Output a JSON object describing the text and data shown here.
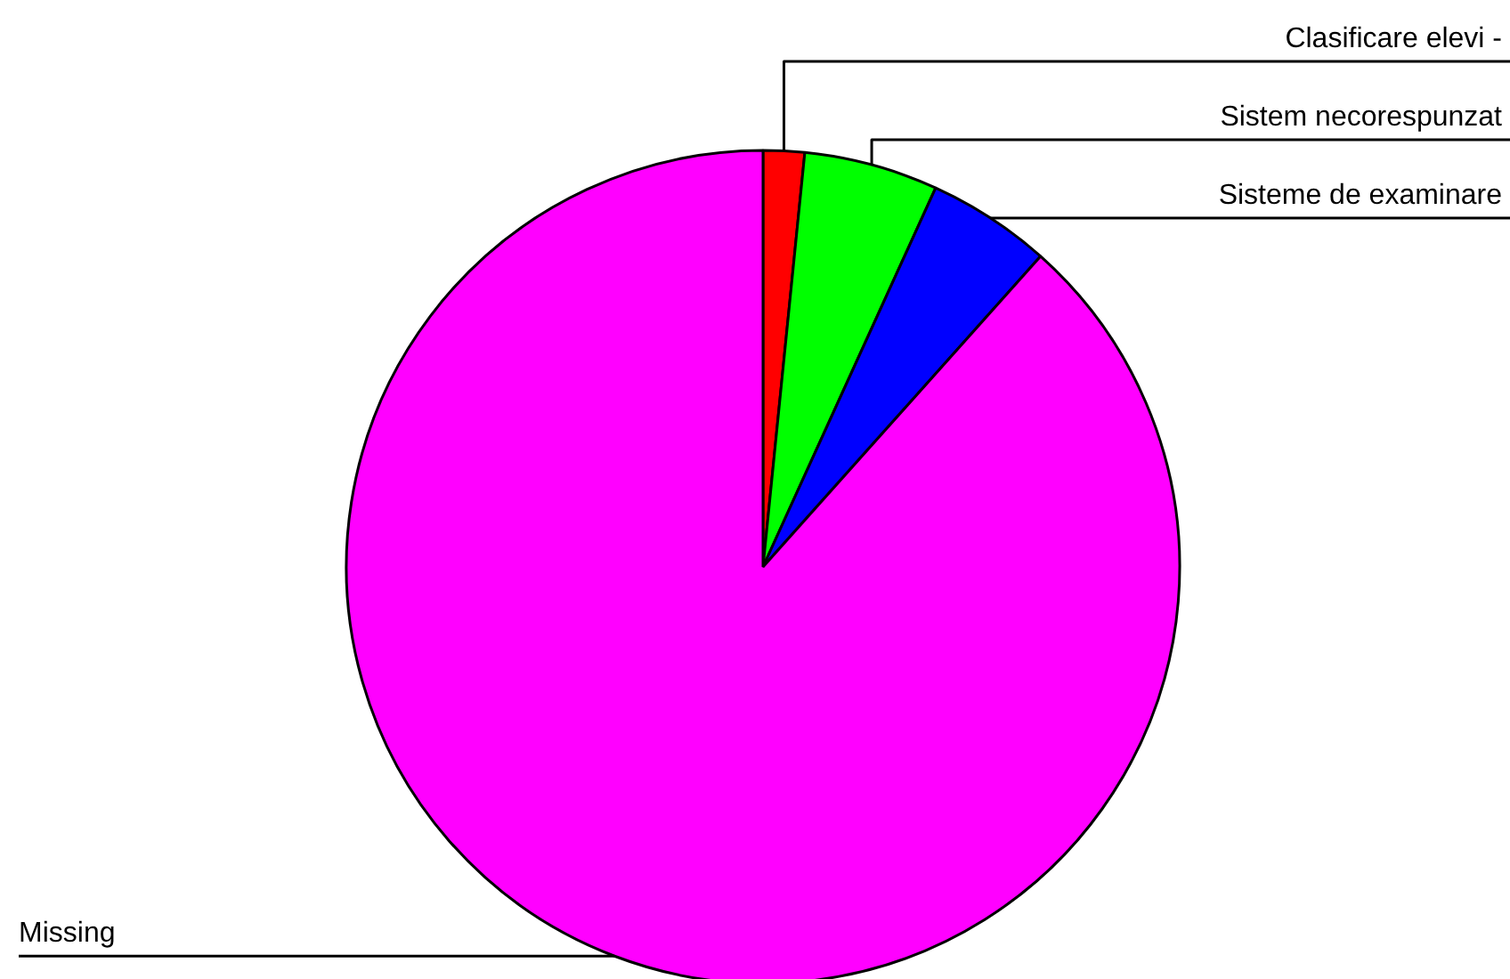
{
  "chart_data": {
    "type": "pie",
    "categories": [
      "Clasificare elevi -",
      "Sistem necorespunzat",
      "Sisteme de examinare",
      "Missing"
    ],
    "values": [
      1.6,
      5.2,
      4.8,
      88.4
    ],
    "colors": [
      "#ff0000",
      "#00ff00",
      "#0000ff",
      "#ff00ff"
    ]
  }
}
